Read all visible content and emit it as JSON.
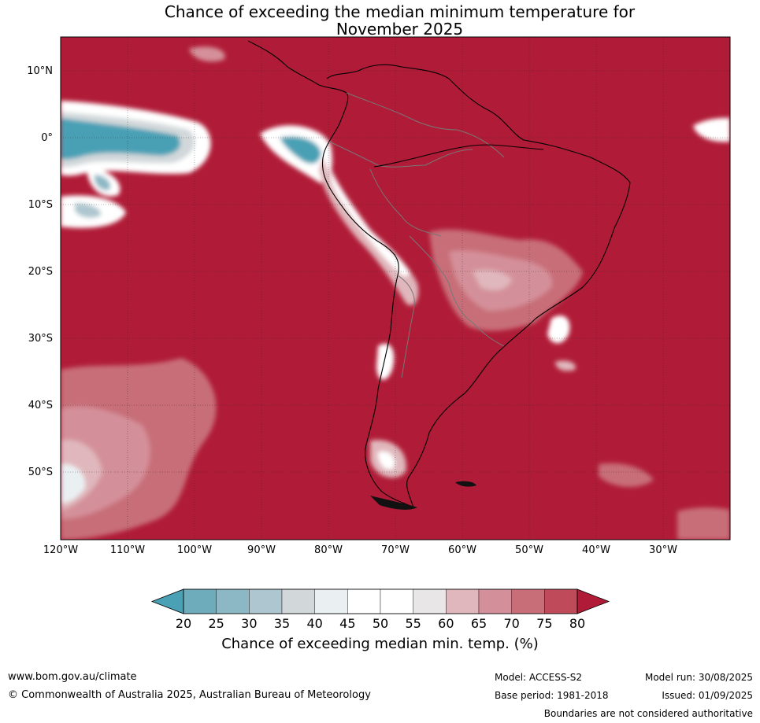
{
  "title": {
    "line1": "Chance of exceeding the median minimum temperature for",
    "line2": "November 2025"
  },
  "map": {
    "region": "South America",
    "base_color": "#b01c37",
    "lat_labels": [
      "10°N",
      "0°",
      "10°S",
      "20°S",
      "30°S",
      "40°S",
      "50°S"
    ],
    "lon_labels": [
      "120°W",
      "110°W",
      "100°W",
      "90°W",
      "80°W",
      "70°W",
      "60°W",
      "50°W",
      "40°W",
      "30°W"
    ]
  },
  "colorbar": {
    "ticks": [
      "20",
      "25",
      "30",
      "35",
      "40",
      "45",
      "50",
      "55",
      "60",
      "65",
      "70",
      "75",
      "80"
    ],
    "colors": [
      "#4aa0b5",
      "#6eacbb",
      "#8cb8c5",
      "#adc6cf",
      "#d2d8da",
      "#eaf0f2",
      "#ffffff",
      "#ffffff",
      "#e8e6e7",
      "#e0b7bc",
      "#d4909a",
      "#c86e78",
      "#bf4a59"
    ],
    "under_color": "#4aa0b5",
    "over_color": "#b01c37",
    "label": "Chance of exceeding median min. temp. (%)"
  },
  "footer": {
    "url": "www.bom.gov.au/climate",
    "copyright": "© Commonwealth of Australia 2025, Australian Bureau of Meteorology",
    "model": "Model: ACCESS-S2",
    "base_period": "Base period: 1981-2018",
    "model_run": "Model run: 30/08/2025",
    "issued": "Issued: 01/09/2025",
    "disclaimer": "Boundaries are not considered authoritative"
  }
}
